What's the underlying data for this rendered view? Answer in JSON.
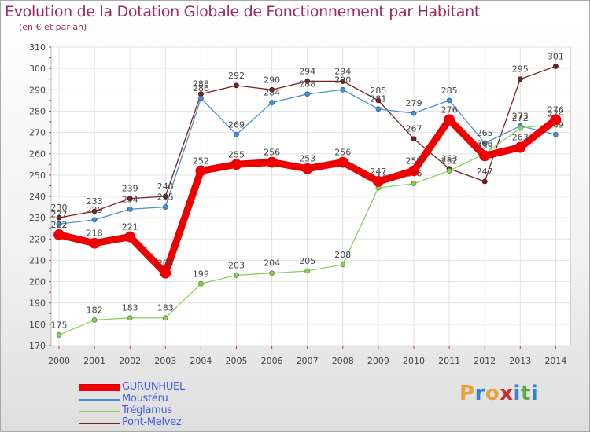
{
  "title": "Evolution de la Dotation Globale de Fonctionnement par Habitant",
  "subtitle": "(en € et par an)",
  "logo": {
    "text": "Proxiti",
    "letters": [
      "P",
      "r",
      "o",
      "x",
      "i",
      "t",
      "i"
    ],
    "colors": [
      "#e8a23a",
      "#2f85d0",
      "#e8a23a",
      "#c9302c",
      "#2f85d0",
      "#5fa945",
      "#2f85d0"
    ]
  },
  "chart_data": {
    "type": "line",
    "title": "Evolution de la Dotation Globale de Fonctionnement par Habitant",
    "subtitle": "(en € et par an)",
    "xlabel": "",
    "ylabel": "",
    "ylim": [
      170,
      310
    ],
    "yticks": [
      170,
      180,
      190,
      200,
      210,
      220,
      230,
      240,
      250,
      260,
      270,
      280,
      290,
      300,
      310
    ],
    "grid": true,
    "legend_position": "bottom-left",
    "x": [
      "2000",
      "2001",
      "2002",
      "2003",
      "2004",
      "2005",
      "2006",
      "2007",
      "2008",
      "2009",
      "2010",
      "2011",
      "2012",
      "2013",
      "2014"
    ],
    "series": [
      {
        "name": "Pont-Melvez",
        "color": "#7a2020",
        "values": [
          230,
          233,
          239,
          240,
          288,
          292,
          290,
          294,
          294,
          285,
          267,
          253,
          247,
          295,
          301
        ]
      },
      {
        "name": "Moustéru",
        "color": "#4a90d0",
        "values": [
          227,
          229,
          234,
          235,
          286,
          269,
          284,
          288,
          290,
          281,
          279,
          285,
          265,
          273,
          269
        ]
      },
      {
        "name": "Tréglamus",
        "color": "#8ad060",
        "values": [
          175,
          182,
          183,
          183,
          199,
          203,
          204,
          205,
          208,
          244,
          246,
          252,
          260,
          272,
          274
        ]
      },
      {
        "name": "GURUNHUEL",
        "color": "#ee0000",
        "values": [
          222,
          218,
          221,
          204,
          252,
          255,
          256,
          253,
          256,
          247,
          252,
          276,
          259,
          263,
          276
        ]
      }
    ],
    "legend": [
      "GURUNHUEL",
      "Moustéru",
      "Tréglamus",
      "Pont-Melvez"
    ]
  }
}
